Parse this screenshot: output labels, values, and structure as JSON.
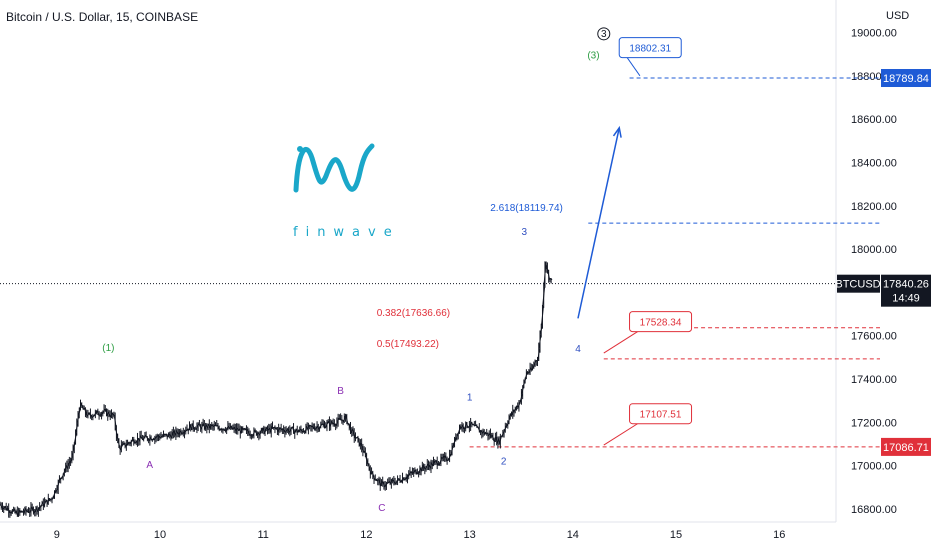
{
  "header": {
    "title": "Bitcoin / U.S. Dollar, 15, COINBASE",
    "currency": "USD"
  },
  "logo": {
    "text": "finwave"
  },
  "chart_data": {
    "type": "candlestick",
    "symbol": "BTCUSD",
    "ylim": [
      16740,
      19150
    ],
    "y_ticks": [
      {
        "v": 19000,
        "label": "19000.00"
      },
      {
        "v": 18800,
        "label": "18800.00"
      },
      {
        "v": 18600,
        "label": "18600.00"
      },
      {
        "v": 18400,
        "label": "18400.00"
      },
      {
        "v": 18200,
        "label": "18200.00"
      },
      {
        "v": 18000,
        "label": "18000.00"
      },
      {
        "v": 17600,
        "label": "17600.00"
      },
      {
        "v": 17400,
        "label": "17400.00"
      },
      {
        "v": 17200,
        "label": "17200.00"
      },
      {
        "v": 17000,
        "label": "17000.00"
      },
      {
        "v": 16800,
        "label": "16800.00"
      }
    ],
    "xlim": [
      8.45,
      16.55
    ],
    "x_ticks": [
      {
        "v": 9,
        "label": "9"
      },
      {
        "v": 10,
        "label": "10"
      },
      {
        "v": 11,
        "label": "11"
      },
      {
        "v": 12,
        "label": "12"
      },
      {
        "v": 13,
        "label": "13"
      },
      {
        "v": 14,
        "label": "14"
      },
      {
        "v": 15,
        "label": "15"
      },
      {
        "v": 16,
        "label": "16"
      }
    ],
    "price_path": [
      [
        8.45,
        16820
      ],
      [
        8.6,
        16780
      ],
      [
        8.8,
        16800
      ],
      [
        8.95,
        16850
      ],
      [
        9.05,
        16960
      ],
      [
        9.15,
        17040
      ],
      [
        9.22,
        17280
      ],
      [
        9.3,
        17230
      ],
      [
        9.45,
        17250
      ],
      [
        9.55,
        17230
      ],
      [
        9.6,
        17080
      ],
      [
        9.75,
        17120
      ],
      [
        9.9,
        17130
      ],
      [
        10.1,
        17140
      ],
      [
        10.3,
        17180
      ],
      [
        10.5,
        17180
      ],
      [
        10.7,
        17170
      ],
      [
        10.9,
        17150
      ],
      [
        11.1,
        17170
      ],
      [
        11.35,
        17160
      ],
      [
        11.5,
        17180
      ],
      [
        11.7,
        17200
      ],
      [
        11.8,
        17220
      ],
      [
        11.85,
        17160
      ],
      [
        11.95,
        17090
      ],
      [
        12.05,
        16960
      ],
      [
        12.15,
        16910
      ],
      [
        12.3,
        16930
      ],
      [
        12.5,
        16980
      ],
      [
        12.65,
        17010
      ],
      [
        12.8,
        17040
      ],
      [
        12.9,
        17180
      ],
      [
        13.0,
        17190
      ],
      [
        13.1,
        17160
      ],
      [
        13.2,
        17140
      ],
      [
        13.28,
        17110
      ],
      [
        13.38,
        17220
      ],
      [
        13.48,
        17290
      ],
      [
        13.55,
        17430
      ],
      [
        13.6,
        17440
      ],
      [
        13.63,
        17480
      ],
      [
        13.66,
        17500
      ],
      [
        13.7,
        17680
      ],
      [
        13.73,
        17950
      ],
      [
        13.76,
        17880
      ],
      [
        13.8,
        17840
      ]
    ],
    "last_price": {
      "value": 17840.26,
      "label": "17840.26",
      "symbol": "BTCUSD",
      "countdown": "14:49"
    },
    "levels": [
      {
        "value": 18789.84,
        "tag": "18789.84",
        "color": "#1e5bd6",
        "x_from": 14.55,
        "show_tag": true
      },
      {
        "value": 18119.74,
        "color": "#1e5bd6",
        "x_from": 14.15,
        "show_tag": false
      },
      {
        "value": 17636.66,
        "color": "#e0303a",
        "x_from": 14.7,
        "show_tag": false
      },
      {
        "value": 17493.22,
        "color": "#e0303a",
        "x_from": 14.3,
        "show_tag": false
      },
      {
        "value": 17086.71,
        "tag": "17086.71",
        "color": "#e0303a",
        "x_from": 13.0,
        "show_tag": true
      }
    ],
    "fib_labels": [
      {
        "text": "2.618(18119.74)",
        "x": 13.2,
        "y": 18175,
        "color": "#1e5bd6"
      },
      {
        "text": "0.382(17636.66)",
        "x": 12.1,
        "y": 17690,
        "color": "#e0303a"
      },
      {
        "text": "0.5(17493.22)",
        "x": 12.1,
        "y": 17548,
        "color": "#e0303a"
      }
    ],
    "target_callouts": [
      {
        "text": "18802.31",
        "x": 14.75,
        "y": 18930,
        "tip_x": 14.65,
        "tip_y": 18800,
        "color": "#1e5bd6"
      },
      {
        "text": "17528.34",
        "x": 14.85,
        "y": 17665,
        "tip_x": 14.3,
        "tip_y": 17520,
        "color": "#e0303a"
      },
      {
        "text": "17107.51",
        "x": 14.85,
        "y": 17240,
        "tip_x": 14.3,
        "tip_y": 17095,
        "color": "#e0303a"
      }
    ],
    "wave_labels": [
      {
        "text": "(1)",
        "x": 9.5,
        "y": 17530,
        "color": "#2e9e44"
      },
      {
        "text": "A",
        "x": 9.9,
        "y": 16990,
        "color": "#8a2fb3"
      },
      {
        "text": "B",
        "x": 11.75,
        "y": 17330,
        "color": "#8a2fb3"
      },
      {
        "text": "C",
        "x": 12.15,
        "y": 16790,
        "color": "#8a2fb3"
      },
      {
        "text": "1",
        "x": 13.0,
        "y": 17300,
        "color": "#2f4fc0"
      },
      {
        "text": "2",
        "x": 13.33,
        "y": 17005,
        "color": "#2f4fc0"
      },
      {
        "text": "3",
        "x": 13.53,
        "y": 18065,
        "color": "#2f4fc0"
      },
      {
        "text": "4",
        "x": 14.05,
        "y": 17525,
        "color": "#2f4fc0"
      },
      {
        "text": "(3)",
        "x": 14.2,
        "y": 18880,
        "color": "#2e9e44"
      },
      {
        "text": "3",
        "x": 14.3,
        "y": 18980,
        "color": "#131722",
        "circled": true
      }
    ],
    "projection_arrow": {
      "from": [
        14.05,
        17680
      ],
      "to": [
        14.45,
        18560
      ],
      "color": "#1e5bd6"
    }
  }
}
